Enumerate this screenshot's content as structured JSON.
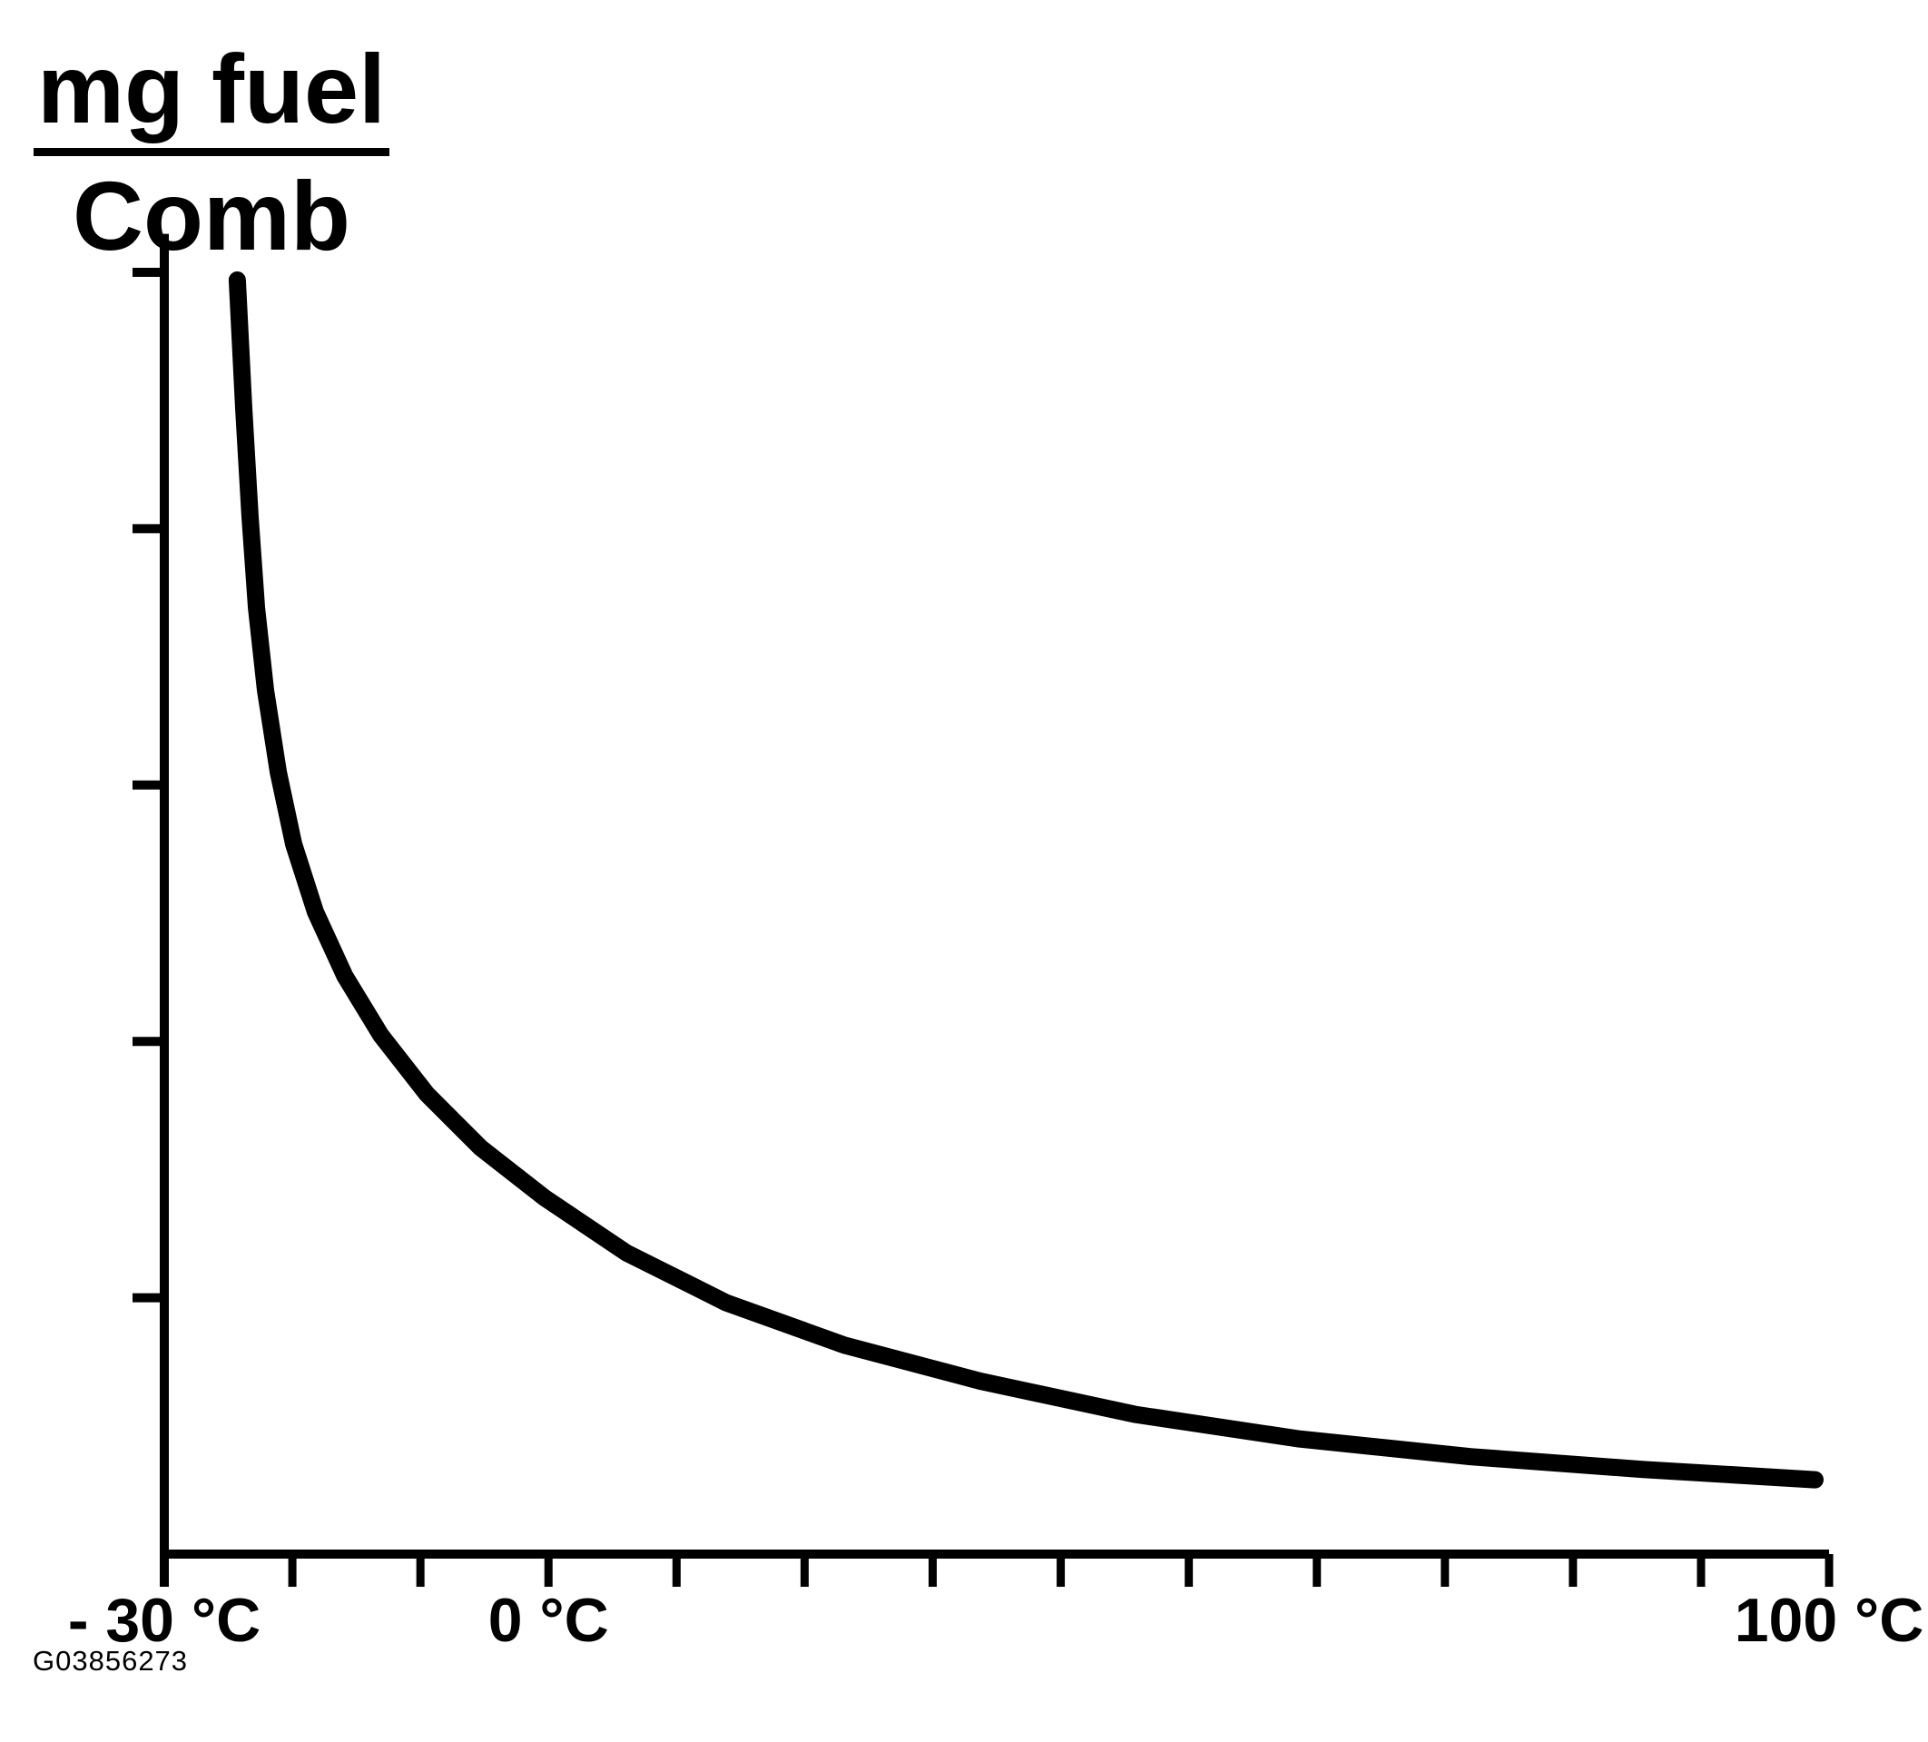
{
  "colors": {
    "ink": "#000000",
    "background": "#ffffff"
  },
  "figure": {
    "unit_fraction": {
      "numerator": "mg fuel",
      "denominator": "Comb"
    },
    "figure_id": "G03856273"
  },
  "chart_data": {
    "type": "line",
    "ylabel": "mg fuel / Comb",
    "ylabel_numerator": "mg fuel",
    "ylabel_denominator": "Comb",
    "x_unit": "°C",
    "grid": false,
    "legend": false,
    "x_axis": {
      "min": -30,
      "max": 100,
      "tick_step_c": 10,
      "labeled_ticks": [
        {
          "value": -30,
          "text": "- 30 °C"
        },
        {
          "value": 0,
          "text": "0 °C"
        },
        {
          "value": 100,
          "text": "100 °C"
        }
      ]
    },
    "y_axis": {
      "min": 0,
      "max": 103,
      "ticks_relative": [
        20,
        40,
        60,
        80,
        100
      ],
      "tick_labels_visible": false
    },
    "series": [
      {
        "name": "injected-fuel-mass-vs-temperature",
        "points": [
          {
            "t": -24.3,
            "v": 99.4
          },
          {
            "t": -23.8,
            "v": 89.4
          },
          {
            "t": -23.3,
            "v": 80.9
          },
          {
            "t": -22.8,
            "v": 73.8
          },
          {
            "t": -22.1,
            "v": 67.4
          },
          {
            "t": -21.1,
            "v": 61.0
          },
          {
            "t": -19.9,
            "v": 55.4
          },
          {
            "t": -18.2,
            "v": 50.1
          },
          {
            "t": -15.9,
            "v": 45.1
          },
          {
            "t": -13.1,
            "v": 40.5
          },
          {
            "t": -9.5,
            "v": 35.9
          },
          {
            "t": -5.3,
            "v": 31.7
          },
          {
            "t": -0.3,
            "v": 27.8
          },
          {
            "t": 6.1,
            "v": 23.5
          },
          {
            "t": 13.9,
            "v": 19.6
          },
          {
            "t": 23.1,
            "v": 16.3
          },
          {
            "t": 33.7,
            "v": 13.5
          },
          {
            "t": 45.8,
            "v": 10.9
          },
          {
            "t": 58.5,
            "v": 9.0
          },
          {
            "t": 72.0,
            "v": 7.6
          },
          {
            "t": 85.5,
            "v": 6.6
          },
          {
            "t": 98.9,
            "v": 5.8
          }
        ]
      }
    ]
  }
}
